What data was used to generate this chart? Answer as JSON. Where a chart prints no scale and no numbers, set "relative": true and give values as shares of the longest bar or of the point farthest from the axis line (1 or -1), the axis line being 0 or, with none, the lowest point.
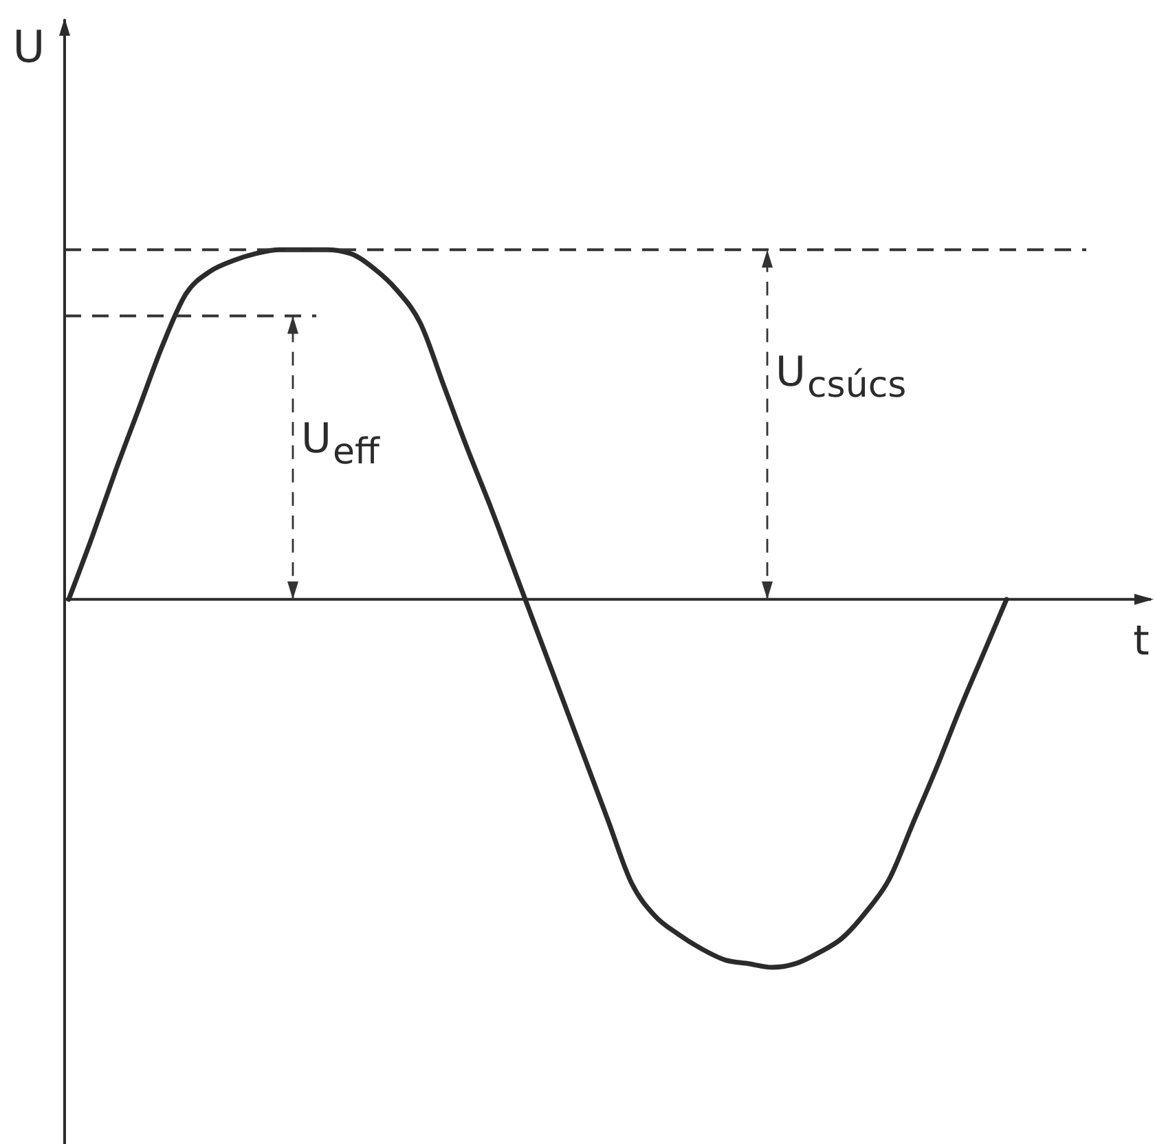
{
  "chart_data": {
    "type": "line",
    "relative": true,
    "xlabel": "t",
    "ylabel": "U",
    "categories": [
      null,
      null,
      null,
      null,
      null,
      null,
      null,
      null,
      null,
      null,
      null,
      null,
      null,
      null,
      null,
      null,
      null,
      null,
      null,
      null,
      null,
      null,
      null,
      null,
      null,
      null,
      null,
      null,
      null,
      null,
      null,
      null,
      null,
      null,
      null,
      null,
      null,
      null,
      null,
      null,
      null
    ],
    "values": [
      0,
      0.17,
      0.35,
      0.52,
      0.69,
      0.83,
      0.89,
      0.92,
      0.94,
      0.95,
      0.95,
      0.95,
      0.94,
      0.9,
      0.84,
      0.75,
      0.58,
      0.41,
      0.25,
      0.08,
      -0.09,
      -0.26,
      -0.43,
      -0.6,
      -0.77,
      -0.86,
      -0.91,
      -0.95,
      -0.98,
      -0.99,
      -1,
      -0.99,
      -0.96,
      -0.92,
      -0.85,
      -0.76,
      -0.61,
      -0.46,
      -0.3,
      -0.15,
      0
    ],
    "color": "#2b2b2b",
    "ref_lines": [
      {
        "axis": "y",
        "value": 0.77,
        "label": "U$_{eff}$",
        "line_style": "dashed",
        "color": "#333333"
      },
      {
        "axis": "y",
        "value": 0.95,
        "label": "U$_{csúcs}$",
        "line_style": "dashed",
        "color": "#333333"
      }
    ]
  }
}
